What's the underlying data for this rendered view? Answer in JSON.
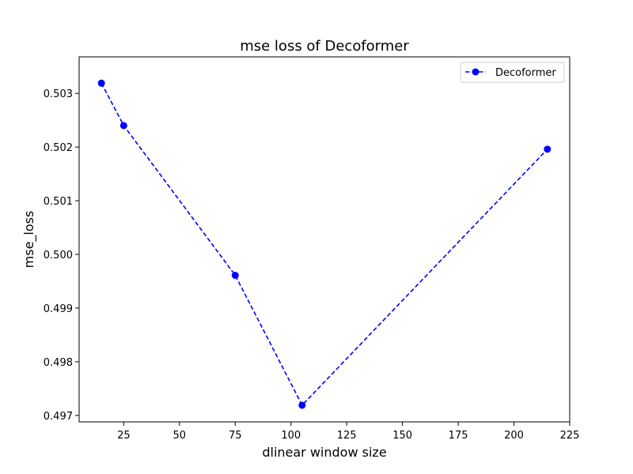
{
  "chart_data": {
    "type": "line",
    "title": "mse loss of Decoformer",
    "xlabel": "dlinear window size",
    "ylabel": "mse_loss",
    "xlim": [
      5.0,
      225.0
    ],
    "ylim": [
      0.49688,
      0.50368
    ],
    "x_ticks": [
      25,
      50,
      75,
      100,
      125,
      150,
      175,
      200,
      225
    ],
    "y_ticks": [
      0.497,
      0.498,
      0.499,
      0.5,
      0.501,
      0.502,
      0.503
    ],
    "x_tick_labels": [
      "25",
      "50",
      "75",
      "100",
      "125",
      "150",
      "175",
      "200",
      "225"
    ],
    "y_tick_labels": [
      "0.497",
      "0.498",
      "0.499",
      "0.500",
      "0.501",
      "0.502",
      "0.503"
    ],
    "grid": false,
    "legend_position": "upper right",
    "series": [
      {
        "name": "Decoformer",
        "color": "#0000ff",
        "line_style": "dashed",
        "marker": "circle",
        "x": [
          15,
          25,
          75,
          105,
          215
        ],
        "y": [
          0.50319,
          0.5024,
          0.49961,
          0.49719,
          0.50196
        ]
      }
    ]
  }
}
